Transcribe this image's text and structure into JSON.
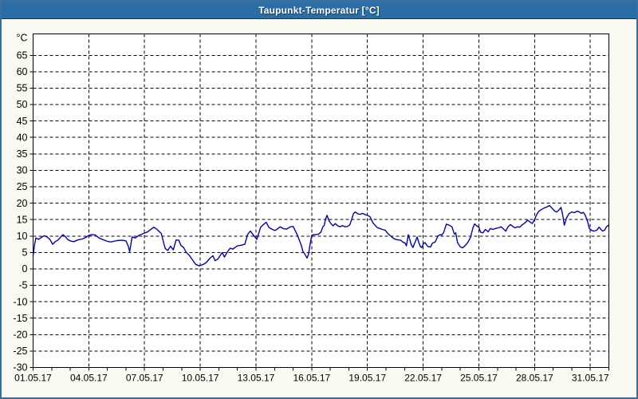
{
  "window": {
    "title": "Taupunkt-Temperatur [°C]"
  },
  "colors": {
    "titlebar_bg": "#2b6da5",
    "titlebar_border": "#16395c",
    "window_border": "#3a6e9e",
    "page_bg": "#fafaf2",
    "plot_bg": "#ffffff",
    "grid": "#000000",
    "axis": "#000000",
    "line": "#0000c0"
  },
  "chart_data": {
    "type": "line",
    "title": "Taupunkt-Temperatur [°C]",
    "y_unit_label": "°C",
    "ylim": [
      -30,
      71.5
    ],
    "yticks": [
      65,
      60,
      55,
      50,
      45,
      40,
      35,
      30,
      25,
      20,
      15,
      10,
      5,
      0,
      -5,
      -10,
      -15,
      -20,
      -25,
      -30
    ],
    "x_days_total": 31,
    "x_minor_tick_every_days": 1,
    "grid": "dashed",
    "legend": "none",
    "xticks": [
      {
        "day": 0,
        "label": "01.05.17"
      },
      {
        "day": 3,
        "label": "04.05.17"
      },
      {
        "day": 6,
        "label": "07.05.17"
      },
      {
        "day": 9,
        "label": "10.05.17"
      },
      {
        "day": 12,
        "label": "13.05.17"
      },
      {
        "day": 15,
        "label": "16.05.17"
      },
      {
        "day": 18,
        "label": "19.05.17"
      },
      {
        "day": 21,
        "label": "22.05.17"
      },
      {
        "day": 24,
        "label": "25.05.17"
      },
      {
        "day": 27,
        "label": "28.05.17"
      },
      {
        "day": 30,
        "label": "31.05.17"
      }
    ],
    "series": [
      {
        "name": "Taupunkt-Temperatur",
        "color": "#0000c0",
        "points": [
          [
            0.0,
            4.0
          ],
          [
            0.08,
            7.5
          ],
          [
            0.15,
            9.4
          ],
          [
            0.3,
            9.0
          ],
          [
            0.45,
            9.6
          ],
          [
            0.6,
            10.1
          ],
          [
            0.75,
            9.7
          ],
          [
            0.9,
            9.0
          ],
          [
            1.05,
            7.5
          ],
          [
            1.2,
            8.3
          ],
          [
            1.35,
            8.8
          ],
          [
            1.5,
            9.8
          ],
          [
            1.6,
            10.4
          ],
          [
            1.72,
            9.9
          ],
          [
            1.85,
            9.0
          ],
          [
            2.0,
            8.5
          ],
          [
            2.2,
            8.3
          ],
          [
            2.4,
            8.8
          ],
          [
            2.65,
            9.1
          ],
          [
            2.85,
            9.6
          ],
          [
            3.0,
            10.2
          ],
          [
            3.15,
            10.4
          ],
          [
            3.35,
            10.3
          ],
          [
            3.55,
            9.4
          ],
          [
            3.8,
            8.8
          ],
          [
            4.0,
            8.4
          ],
          [
            4.2,
            8.2
          ],
          [
            4.5,
            8.6
          ],
          [
            4.8,
            8.7
          ],
          [
            5.0,
            8.5
          ],
          [
            5.13,
            6.8
          ],
          [
            5.2,
            5.2
          ],
          [
            5.33,
            9.7
          ],
          [
            5.5,
            9.4
          ],
          [
            5.7,
            10.2
          ],
          [
            5.95,
            10.8
          ],
          [
            6.15,
            11.2
          ],
          [
            6.4,
            12.3
          ],
          [
            6.5,
            12.7
          ],
          [
            6.65,
            12.1
          ],
          [
            6.9,
            10.8
          ],
          [
            7.05,
            7.5
          ],
          [
            7.12,
            6.2
          ],
          [
            7.25,
            5.6
          ],
          [
            7.4,
            6.9
          ],
          [
            7.55,
            5.8
          ],
          [
            7.7,
            8.8
          ],
          [
            7.85,
            8.7
          ],
          [
            7.95,
            7.2
          ],
          [
            8.1,
            6.5
          ],
          [
            8.25,
            5.0
          ],
          [
            8.4,
            4.2
          ],
          [
            8.55,
            3.0
          ],
          [
            8.75,
            1.4
          ],
          [
            8.95,
            0.9
          ],
          [
            9.1,
            1.2
          ],
          [
            9.3,
            1.8
          ],
          [
            9.55,
            3.4
          ],
          [
            9.68,
            4.0
          ],
          [
            9.8,
            2.5
          ],
          [
            9.95,
            3.0
          ],
          [
            10.18,
            5.0
          ],
          [
            10.3,
            3.6
          ],
          [
            10.5,
            5.5
          ],
          [
            10.62,
            6.3
          ],
          [
            10.75,
            6.0
          ],
          [
            11.0,
            7.0
          ],
          [
            11.2,
            7.2
          ],
          [
            11.4,
            7.5
          ],
          [
            11.55,
            10.5
          ],
          [
            11.7,
            11.5
          ],
          [
            11.9,
            10.0
          ],
          [
            12.05,
            9.0
          ],
          [
            12.25,
            12.7
          ],
          [
            12.4,
            13.5
          ],
          [
            12.55,
            14.2
          ],
          [
            12.7,
            12.6
          ],
          [
            12.85,
            12.1
          ],
          [
            13.0,
            11.7
          ],
          [
            13.1,
            11.9
          ],
          [
            13.3,
            12.8
          ],
          [
            13.5,
            12.2
          ],
          [
            13.65,
            12.1
          ],
          [
            13.85,
            12.8
          ],
          [
            14.0,
            12.9
          ],
          [
            14.12,
            11.5
          ],
          [
            14.22,
            10.4
          ],
          [
            14.35,
            8.5
          ],
          [
            14.45,
            7.0
          ],
          [
            14.52,
            5.4
          ],
          [
            14.65,
            4.3
          ],
          [
            14.75,
            3.3
          ],
          [
            14.82,
            4.3
          ],
          [
            14.9,
            7.0
          ],
          [
            15.0,
            10.2
          ],
          [
            15.12,
            10.4
          ],
          [
            15.35,
            10.5
          ],
          [
            15.5,
            11.2
          ],
          [
            15.6,
            12.8
          ],
          [
            15.67,
            13.2
          ],
          [
            15.75,
            15.2
          ],
          [
            15.82,
            16.3
          ],
          [
            15.92,
            14.8
          ],
          [
            16.02,
            13.9
          ],
          [
            16.15,
            13.1
          ],
          [
            16.27,
            13.8
          ],
          [
            16.4,
            13.1
          ],
          [
            16.52,
            12.8
          ],
          [
            16.65,
            13.2
          ],
          [
            16.8,
            12.8
          ],
          [
            16.92,
            12.9
          ],
          [
            17.05,
            13.4
          ],
          [
            17.15,
            15.0
          ],
          [
            17.25,
            16.9
          ],
          [
            17.35,
            17.3
          ],
          [
            17.5,
            16.7
          ],
          [
            17.62,
            16.6
          ],
          [
            17.72,
            16.9
          ],
          [
            17.82,
            16.7
          ],
          [
            17.92,
            16.4
          ],
          [
            18.02,
            16.3
          ],
          [
            18.15,
            15.8
          ],
          [
            18.3,
            14.0
          ],
          [
            18.42,
            13.2
          ],
          [
            18.55,
            12.5
          ],
          [
            18.67,
            12.3
          ],
          [
            18.8,
            12.0
          ],
          [
            18.95,
            11.8
          ],
          [
            19.1,
            10.8
          ],
          [
            19.25,
            10.0
          ],
          [
            19.4,
            9.3
          ],
          [
            19.52,
            9.0
          ],
          [
            19.67,
            8.8
          ],
          [
            19.8,
            8.7
          ],
          [
            19.92,
            8.1
          ],
          [
            20.02,
            7.9
          ],
          [
            20.1,
            7.0
          ],
          [
            20.2,
            10.4
          ],
          [
            20.28,
            9.0
          ],
          [
            20.35,
            7.5
          ],
          [
            20.45,
            6.5
          ],
          [
            20.52,
            7.5
          ],
          [
            20.68,
            9.7
          ],
          [
            20.77,
            8.0
          ],
          [
            20.85,
            6.8
          ],
          [
            20.92,
            6.5
          ],
          [
            21.02,
            7.7
          ],
          [
            21.1,
            8.0
          ],
          [
            21.25,
            6.8
          ],
          [
            21.4,
            6.7
          ],
          [
            21.5,
            7.8
          ],
          [
            21.65,
            8.2
          ],
          [
            21.8,
            10.0
          ],
          [
            21.9,
            10.4
          ],
          [
            22.0,
            10.3
          ],
          [
            22.1,
            11.0
          ],
          [
            22.25,
            13.6
          ],
          [
            22.4,
            13.3
          ],
          [
            22.55,
            12.8
          ],
          [
            22.68,
            10.6
          ],
          [
            22.75,
            11.0
          ],
          [
            22.85,
            8.0
          ],
          [
            23.0,
            6.7
          ],
          [
            23.12,
            6.4
          ],
          [
            23.25,
            7.0
          ],
          [
            23.4,
            8.0
          ],
          [
            23.55,
            9.6
          ],
          [
            23.68,
            12.5
          ],
          [
            23.77,
            13.7
          ],
          [
            23.9,
            13.0
          ],
          [
            24.0,
            12.7
          ],
          [
            24.1,
            11.1
          ],
          [
            24.22,
            11.0
          ],
          [
            24.35,
            12.0
          ],
          [
            24.5,
            11.3
          ],
          [
            24.62,
            12.3
          ],
          [
            24.75,
            12.0
          ],
          [
            24.9,
            12.3
          ],
          [
            25.05,
            12.5
          ],
          [
            25.2,
            12.8
          ],
          [
            25.35,
            12.0
          ],
          [
            25.45,
            11.5
          ],
          [
            25.57,
            12.8
          ],
          [
            25.7,
            13.5
          ],
          [
            25.85,
            12.8
          ],
          [
            25.95,
            12.5
          ],
          [
            26.07,
            12.8
          ],
          [
            26.2,
            12.7
          ],
          [
            26.35,
            13.5
          ],
          [
            26.5,
            14.1
          ],
          [
            26.62,
            14.8
          ],
          [
            26.75,
            14.3
          ],
          [
            26.87,
            13.8
          ],
          [
            27.0,
            15.0
          ],
          [
            27.1,
            16.4
          ],
          [
            27.22,
            17.5
          ],
          [
            27.35,
            18.0
          ],
          [
            27.5,
            18.5
          ],
          [
            27.65,
            18.8
          ],
          [
            27.8,
            19.3
          ],
          [
            27.95,
            18.4
          ],
          [
            28.1,
            17.5
          ],
          [
            28.2,
            17.3
          ],
          [
            28.32,
            18.0
          ],
          [
            28.42,
            18.7
          ],
          [
            28.5,
            16.8
          ],
          [
            28.6,
            13.3
          ],
          [
            28.72,
            15.5
          ],
          [
            28.85,
            16.8
          ],
          [
            29.0,
            17.3
          ],
          [
            29.15,
            17.1
          ],
          [
            29.3,
            17.6
          ],
          [
            29.42,
            17.3
          ],
          [
            29.52,
            16.9
          ],
          [
            29.62,
            17.2
          ],
          [
            29.72,
            16.4
          ],
          [
            29.85,
            14.5
          ],
          [
            29.95,
            12.3
          ],
          [
            30.08,
            11.7
          ],
          [
            30.2,
            11.5
          ],
          [
            30.35,
            11.8
          ],
          [
            30.47,
            12.7
          ],
          [
            30.57,
            12.0
          ],
          [
            30.67,
            11.5
          ],
          [
            30.77,
            11.8
          ],
          [
            30.87,
            12.8
          ],
          [
            30.98,
            13.3
          ]
        ]
      }
    ]
  }
}
